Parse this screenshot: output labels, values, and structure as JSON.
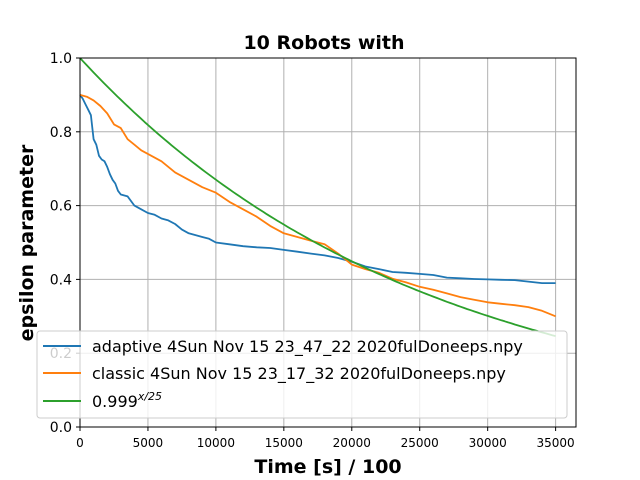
{
  "chart_data": {
    "type": "line",
    "title": "10 Robots with",
    "xlabel": "Time [s] / 100",
    "ylabel": "epsilon parameter",
    "xlim": [
      0,
      36500
    ],
    "ylim": [
      0.0,
      1.0
    ],
    "xticks": [
      0,
      5000,
      10000,
      15000,
      20000,
      25000,
      30000,
      35000
    ],
    "xtick_labels": [
      "0",
      "5000",
      "10000",
      "15000",
      "20000",
      "25000",
      "30000",
      "35000"
    ],
    "yticks": [
      0.0,
      0.2,
      0.4,
      0.6,
      0.8,
      1.0
    ],
    "ytick_labels": [
      "0.0",
      "0.2",
      "0.4",
      "0.6",
      "0.8",
      "1.0"
    ],
    "grid": true,
    "legend_position": "lower-left",
    "series": [
      {
        "name": "adaptive 4Sun Nov 15 23_47_22 2020fulDoneeps.npy",
        "color": "#1f77b4",
        "x": [
          0,
          200,
          400,
          600,
          800,
          1000,
          1200,
          1400,
          1600,
          1800,
          2000,
          2200,
          2400,
          2600,
          2800,
          3000,
          3500,
          4000,
          4500,
          5000,
          5500,
          6000,
          6500,
          7000,
          7500,
          8000,
          8500,
          9000,
          9500,
          10000,
          11000,
          12000,
          13000,
          14000,
          15000,
          16000,
          17000,
          18000,
          19000,
          20000,
          21000,
          22000,
          23000,
          24000,
          25000,
          26000,
          27000,
          28000,
          29000,
          30000,
          31000,
          32000,
          33000,
          34000,
          35000
        ],
        "y": [
          0.9,
          0.89,
          0.875,
          0.86,
          0.845,
          0.78,
          0.765,
          0.735,
          0.725,
          0.72,
          0.705,
          0.685,
          0.67,
          0.66,
          0.64,
          0.63,
          0.625,
          0.6,
          0.59,
          0.58,
          0.575,
          0.565,
          0.56,
          0.55,
          0.535,
          0.525,
          0.52,
          0.515,
          0.51,
          0.5,
          0.495,
          0.49,
          0.487,
          0.485,
          0.48,
          0.475,
          0.47,
          0.465,
          0.458,
          0.448,
          0.435,
          0.428,
          0.42,
          0.418,
          0.415,
          0.412,
          0.405,
          0.403,
          0.401,
          0.4,
          0.399,
          0.398,
          0.394,
          0.39,
          0.39
        ]
      },
      {
        "name": "classic 4Sun Nov 15 23_17_32 2020fulDoneeps.npy",
        "color": "#ff7f0e",
        "x": [
          0,
          500,
          1000,
          1500,
          2000,
          2500,
          3000,
          3500,
          4000,
          4500,
          5000,
          6000,
          7000,
          8000,
          9000,
          10000,
          11000,
          12000,
          13000,
          14000,
          15000,
          16000,
          17000,
          18000,
          19000,
          20000,
          21000,
          22000,
          23000,
          24000,
          25000,
          26000,
          27000,
          28000,
          29000,
          30000,
          31000,
          32000,
          33000,
          34000,
          35000
        ],
        "y": [
          0.9,
          0.895,
          0.885,
          0.87,
          0.85,
          0.82,
          0.81,
          0.78,
          0.765,
          0.75,
          0.74,
          0.72,
          0.69,
          0.67,
          0.65,
          0.635,
          0.61,
          0.59,
          0.57,
          0.545,
          0.525,
          0.515,
          0.505,
          0.495,
          0.47,
          0.44,
          0.428,
          0.418,
          0.402,
          0.392,
          0.38,
          0.372,
          0.362,
          0.352,
          0.345,
          0.338,
          0.334,
          0.33,
          0.325,
          0.315,
          0.3
        ]
      },
      {
        "name": "0.999^{x/25}",
        "color": "#2ca02c",
        "formula": "0.999^(x/25)",
        "x": [
          0,
          2500,
          5000,
          7500,
          10000,
          12500,
          15000,
          17500,
          20000,
          22500,
          25000,
          27500,
          30000,
          32500,
          35000
        ],
        "y": [
          1.0,
          0.905,
          0.819,
          0.741,
          0.67,
          0.607,
          0.549,
          0.497,
          0.449,
          0.407,
          0.368,
          0.333,
          0.301,
          0.273,
          0.246
        ]
      }
    ],
    "legend": {
      "entries": [
        {
          "label": "adaptive 4Sun Nov 15 23_47_22 2020fulDoneeps.npy"
        },
        {
          "label": "classic 4Sun Nov 15 23_17_32 2020fulDoneeps.npy"
        },
        {
          "label_base": "0.999",
          "label_exp": "x/25"
        }
      ]
    }
  }
}
